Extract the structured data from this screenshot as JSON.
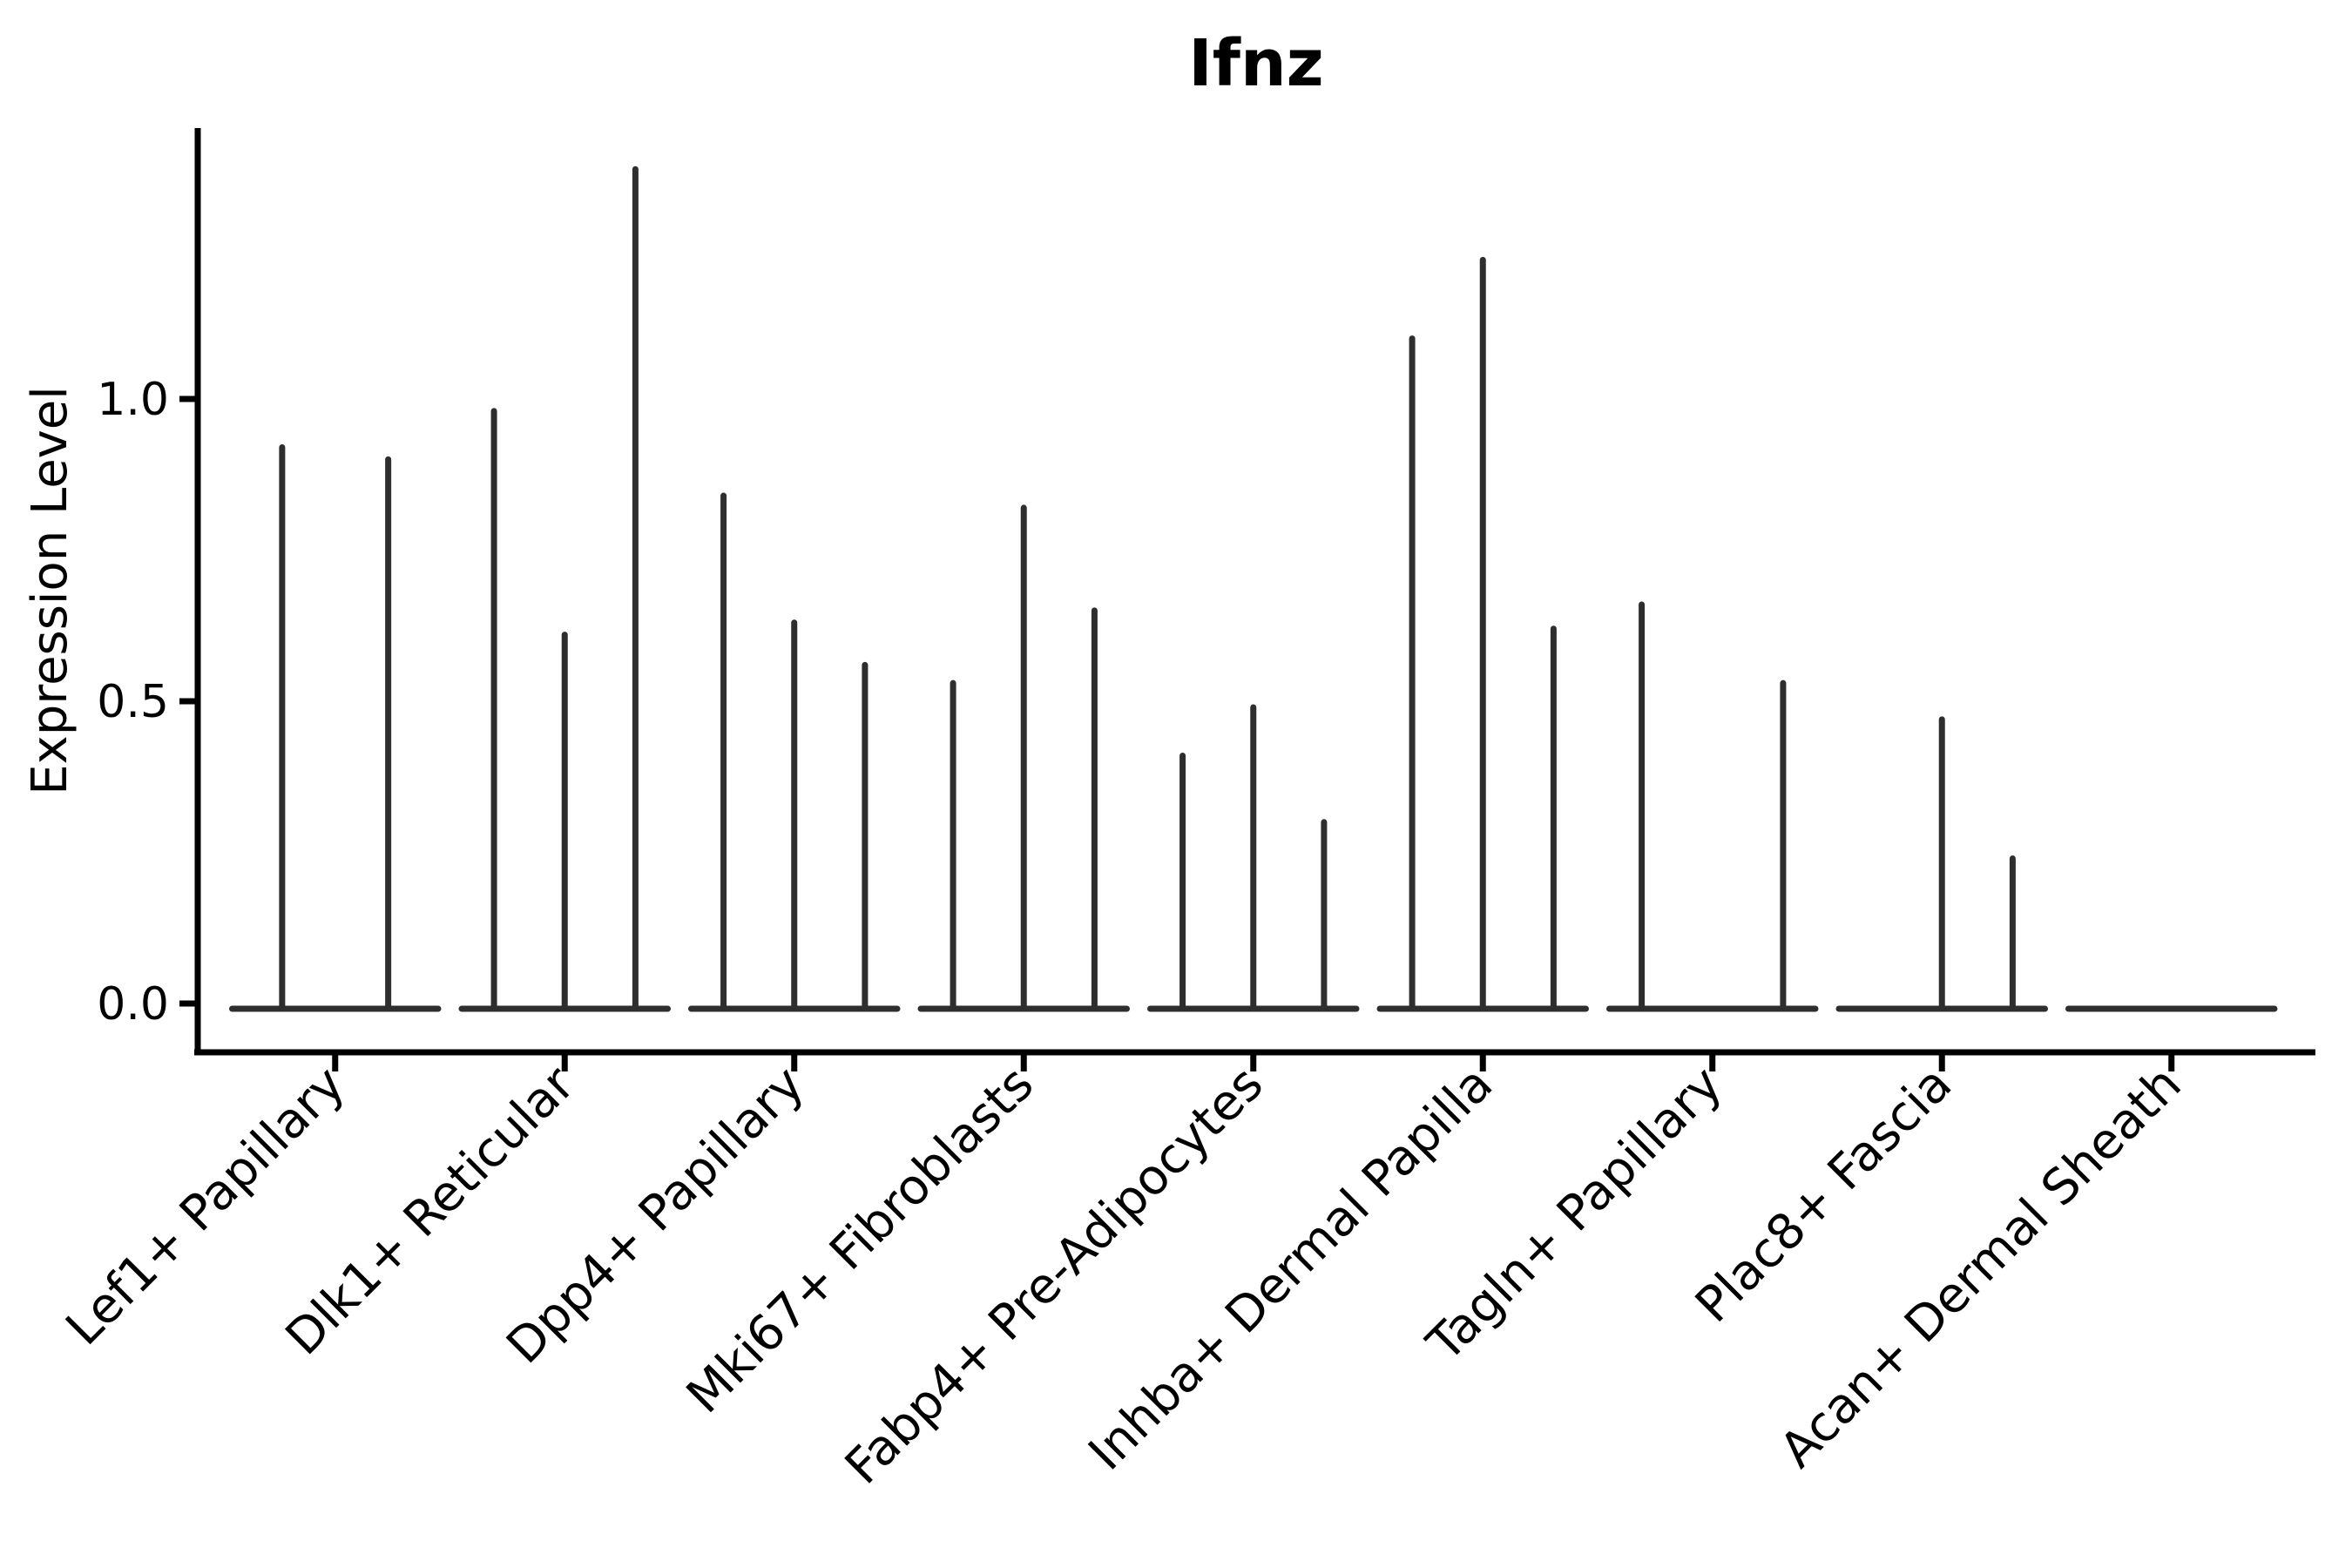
{
  "chart": {
    "title": "Ifnz",
    "ylabel": "Expression Level"
  },
  "chart_data": {
    "type": "violin",
    "title": "Ifnz",
    "xlabel": "",
    "ylabel": "Expression Level",
    "ylim": [
      -0.08,
      1.45
    ],
    "yticks": [
      0.0,
      0.5,
      1.0
    ],
    "ytick_labels": [
      "0.0",
      "0.5",
      "1.0"
    ],
    "grid": false,
    "legend": "none",
    "note": "Sparse-expression violin plot: each cell-type group shows thin zero-width violins (flat baseline at 0) with narrow spikes; spike height = max expression level per violin slot",
    "categories": [
      "Lef1+ Papillary",
      "Dlk1+ Reticular",
      "Dpp4+ Papillary",
      "Mki67+ Fibroblasts",
      "Fabp4+ Pre-Adipocytes",
      "Inhba+ Dermal Papilla",
      "Tagln+ Papillary",
      "Plac8+ Fascia",
      "Acan+ Dermal Sheath"
    ],
    "groups": [
      {
        "category": "Lef1+ Papillary",
        "n_violins": 2,
        "spikes": [
          {
            "slot": 1,
            "peak": 0.92
          },
          {
            "slot": 2,
            "peak": 0.9
          }
        ]
      },
      {
        "category": "Dlk1+ Reticular",
        "n_violins": 3,
        "spikes": [
          {
            "slot": 1,
            "peak": 0.98
          },
          {
            "slot": 2,
            "peak": 0.61
          },
          {
            "slot": 3,
            "peak": 1.38
          }
        ]
      },
      {
        "category": "Dpp4+ Papillary",
        "n_violins": 3,
        "spikes": [
          {
            "slot": 1,
            "peak": 0.84
          },
          {
            "slot": 2,
            "peak": 0.63
          },
          {
            "slot": 3,
            "peak": 0.56
          }
        ]
      },
      {
        "category": "Mki67+ Fibroblasts",
        "n_violins": 3,
        "spikes": [
          {
            "slot": 1,
            "peak": 0.53
          },
          {
            "slot": 2,
            "peak": 0.82
          },
          {
            "slot": 3,
            "peak": 0.65
          }
        ]
      },
      {
        "category": "Fabp4+ Pre-Adipocytes",
        "n_violins": 3,
        "spikes": [
          {
            "slot": 1,
            "peak": 0.41
          },
          {
            "slot": 2,
            "peak": 0.49
          },
          {
            "slot": 3,
            "peak": 0.3
          }
        ]
      },
      {
        "category": "Inhba+ Dermal Papilla",
        "n_violins": 3,
        "spikes": [
          {
            "slot": 1,
            "peak": 1.1
          },
          {
            "slot": 2,
            "peak": 1.23
          },
          {
            "slot": 3,
            "peak": 0.62
          }
        ]
      },
      {
        "category": "Tagln+ Papillary",
        "n_violins": 3,
        "spikes": [
          {
            "slot": 1,
            "peak": 0.66
          },
          {
            "slot": 3,
            "peak": 0.53
          }
        ]
      },
      {
        "category": "Plac8+ Fascia",
        "n_violins": 3,
        "spikes": [
          {
            "slot": 2,
            "peak": 0.47
          },
          {
            "slot": 3,
            "peak": 0.24
          }
        ]
      },
      {
        "category": "Acan+ Dermal Sheath",
        "n_violins": 3,
        "spikes": []
      }
    ],
    "style": {
      "violin_color": "#2e2e2e",
      "axis_color": "#000000",
      "text_color": "#000000",
      "background": "#ffffff"
    }
  }
}
